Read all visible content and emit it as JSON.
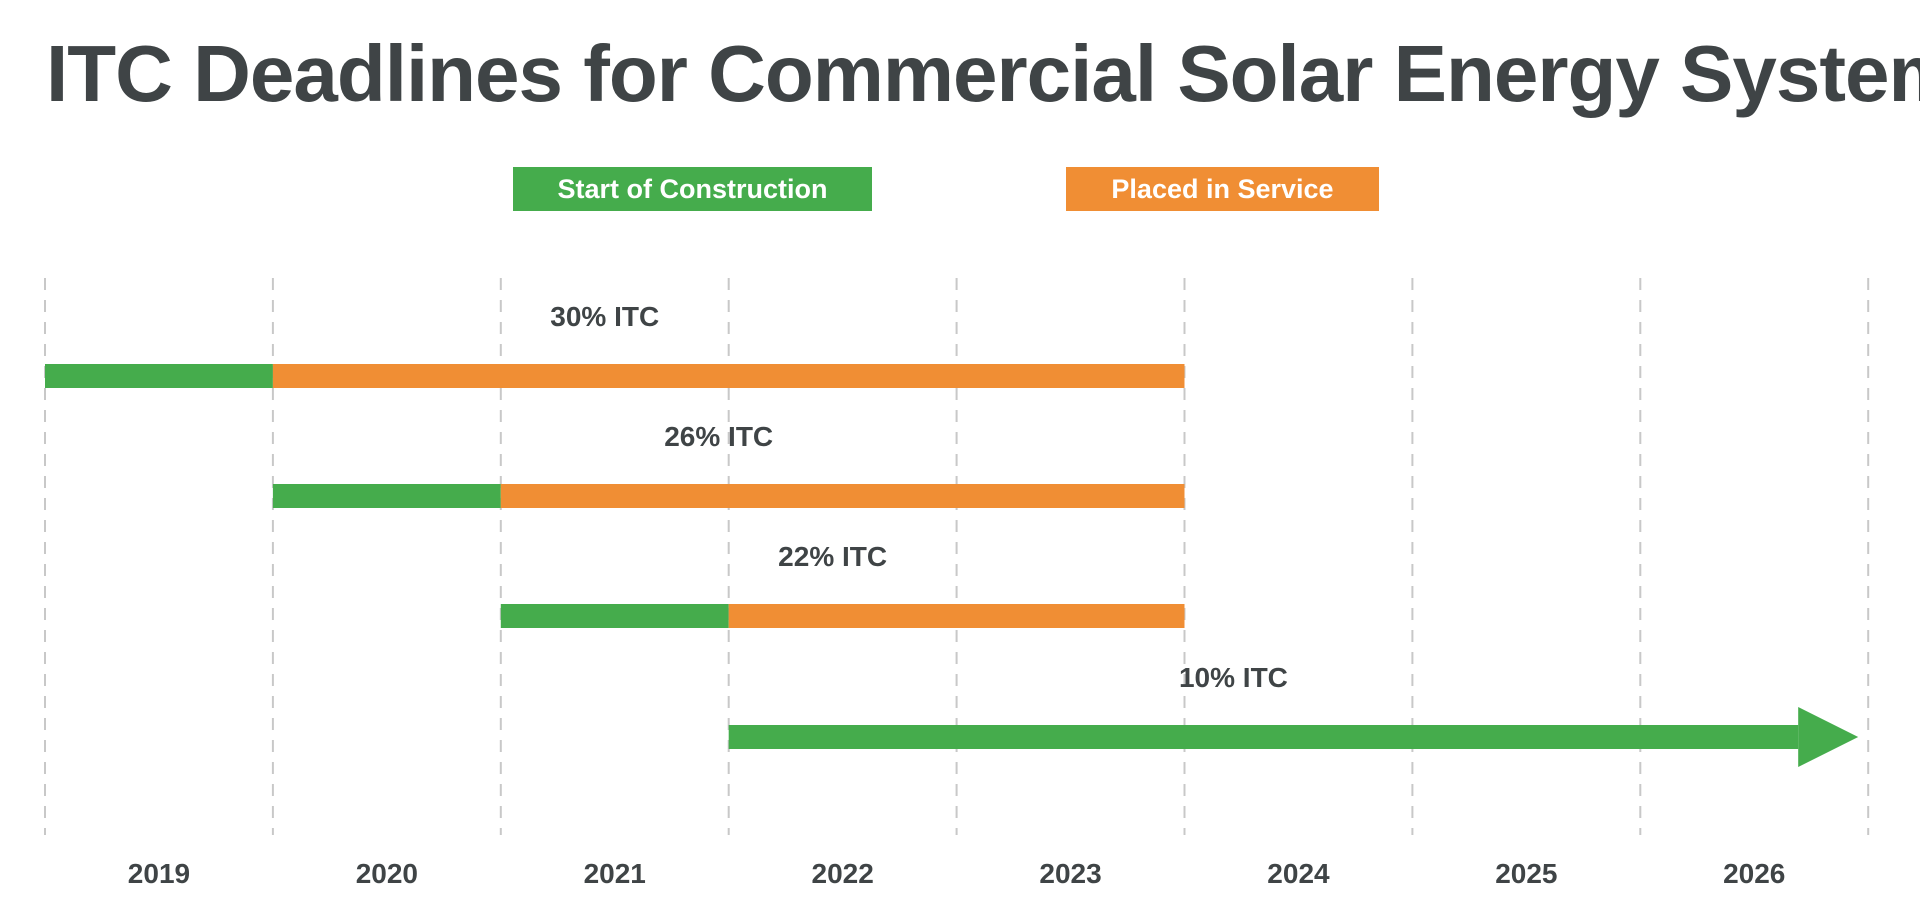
{
  "title": "ITC Deadlines for Commercial Solar Energy Systems",
  "colors": {
    "start": "#45ac4c",
    "service": "#f08e34",
    "grid": "#c8c8c8",
    "text": "#3f4446"
  },
  "legend": [
    {
      "label": "Start of Construction",
      "color": "#45ac4c"
    },
    {
      "label": "Placed in Service",
      "color": "#f08e34"
    }
  ],
  "chart_data": {
    "type": "timeline",
    "title": "ITC Deadlines for Commercial Solar Energy Systems",
    "categories": [
      "2019",
      "2020",
      "2021",
      "2022",
      "2023",
      "2024",
      "2025",
      "2026"
    ],
    "grid": "vertical dashed",
    "legend_position": "top",
    "series": [
      {
        "name": "30% ITC",
        "start_of_construction": [
          "2019",
          "2019"
        ],
        "placed_in_service": [
          "2020",
          "2023"
        ]
      },
      {
        "name": "26% ITC",
        "start_of_construction": [
          "2020",
          "2020"
        ],
        "placed_in_service": [
          "2021",
          "2023"
        ]
      },
      {
        "name": "22% ITC",
        "start_of_construction": [
          "2021",
          "2021"
        ],
        "placed_in_service": [
          "2022",
          "2023"
        ]
      },
      {
        "name": "10% ITC",
        "start_of_construction": [
          "2022",
          "2026"
        ],
        "placed_in_service": null,
        "ongoing": true
      }
    ]
  }
}
